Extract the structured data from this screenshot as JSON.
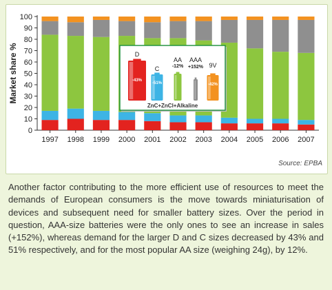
{
  "chart_data": {
    "type": "bar",
    "stacked": true,
    "ylabel": "Market share %",
    "xlabel": "",
    "ylim": [
      0,
      100
    ],
    "yticks": [
      0,
      10,
      20,
      30,
      40,
      50,
      60,
      70,
      80,
      90,
      100
    ],
    "grid": false,
    "categories": [
      "1997",
      "1998",
      "1999",
      "2000",
      "2001",
      "2002",
      "2003",
      "2004",
      "2005",
      "2006",
      "2007"
    ],
    "series": [
      {
        "color": "#e3231f",
        "values": [
          9,
          10,
          9,
          9,
          8,
          7,
          7,
          6,
          6,
          6,
          5
        ]
      },
      {
        "color": "#3db4e5",
        "values": [
          8,
          9,
          8,
          7,
          7,
          6,
          6,
          5,
          4,
          4,
          4
        ]
      },
      {
        "color": "#8dc63f",
        "values": [
          67,
          64,
          65,
          67,
          66,
          68,
          66,
          66,
          62,
          59,
          59
        ]
      },
      {
        "color": "#8f8f8f",
        "values": [
          12,
          12,
          15,
          13,
          14,
          15,
          17,
          20,
          25,
          28,
          29
        ]
      },
      {
        "color": "#f39220",
        "values": [
          4,
          5,
          3,
          4,
          5,
          4,
          4,
          3,
          3,
          3,
          3
        ]
      }
    ],
    "inset": {
      "footer": "ZnC+ZnCl+Alkaline",
      "items": [
        {
          "label": "D",
          "change": "-43%",
          "color": "#e3231f"
        },
        {
          "label": "C",
          "change": "-51%",
          "color": "#3db4e5"
        },
        {
          "label": "AA",
          "change": "-12%",
          "color": "#8dc63f"
        },
        {
          "label": "AAA",
          "change": "+152%",
          "color": "#8f8f8f"
        },
        {
          "label": "9V",
          "change": "-42%",
          "color": "#f39220"
        }
      ]
    }
  },
  "source": "Source: EPBA",
  "body_text": "Another factor contributing to the more efficient use of resources to meet the demands of European consumers is the move towards miniaturisation of devices and subsequent need for smaller battery sizes. Over the period in question, AAA-size batteries were the only ones to see an increase in sales (+152%), whereas demand for the larger D and C sizes decreased by 43% and 51% respectively, and for the most popular AA size (weighing 24g), by 12%."
}
